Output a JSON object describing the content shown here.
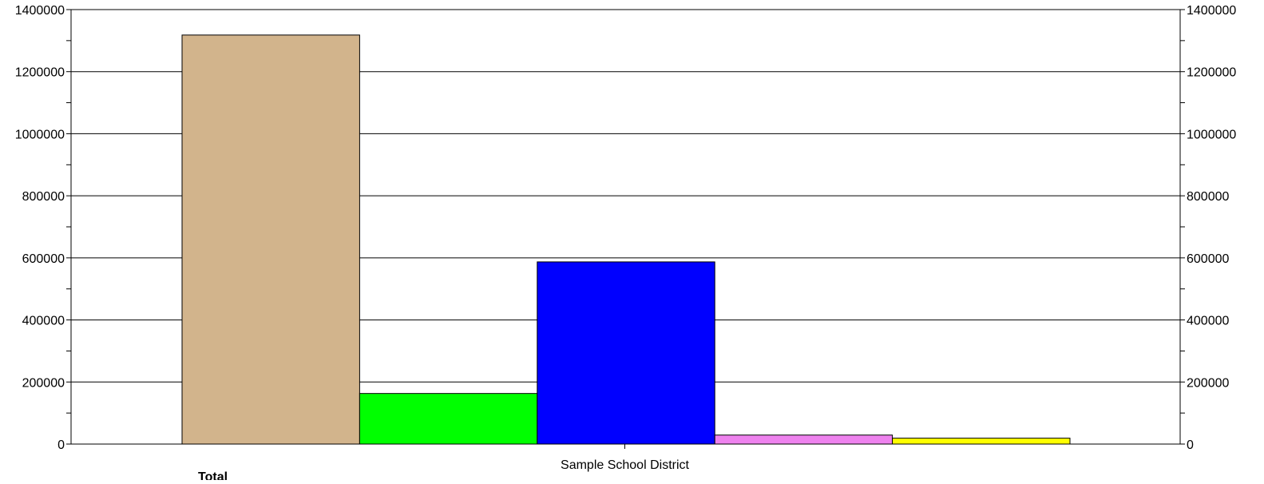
{
  "chart_data": {
    "type": "bar",
    "categories": [
      "Sample School District"
    ],
    "series": [
      {
        "name": "Total",
        "values": [
          1318000
        ],
        "color": "#d2b48c"
      },
      {
        "values": [
          163000
        ],
        "color": "#00ff00"
      },
      {
        "values": [
          587000
        ],
        "color": "#0000ff"
      },
      {
        "values": [
          29000
        ],
        "color": "#ee82ee"
      },
      {
        "values": [
          19000
        ],
        "color": "#ffff00"
      }
    ],
    "ylim": [
      0,
      1400000
    ],
    "yticks": [
      "0",
      "200000",
      "400000",
      "600000",
      "800000",
      "1000000",
      "1200000",
      "1400000"
    ],
    "grid": true,
    "secondary_y_axis": true,
    "legend_position": "bottom"
  }
}
